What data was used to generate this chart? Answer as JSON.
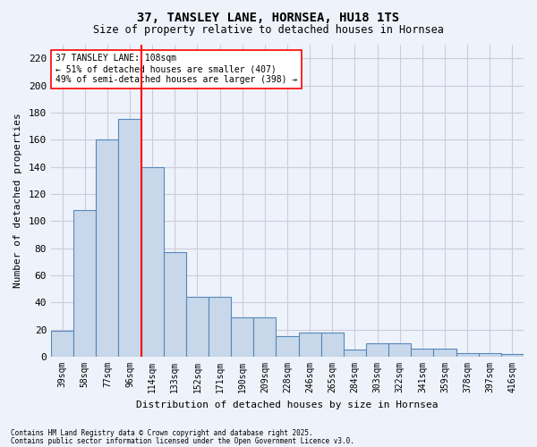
{
  "title1": "37, TANSLEY LANE, HORNSEA, HU18 1TS",
  "title2": "Size of property relative to detached houses in Hornsea",
  "xlabel": "Distribution of detached houses by size in Hornsea",
  "ylabel": "Number of detached properties",
  "categories": [
    "39sqm",
    "58sqm",
    "77sqm",
    "96sqm",
    "114sqm",
    "133sqm",
    "152sqm",
    "171sqm",
    "190sqm",
    "209sqm",
    "228sqm",
    "246sqm",
    "265sqm",
    "284sqm",
    "303sqm",
    "322sqm",
    "341sqm",
    "359sqm",
    "378sqm",
    "397sqm",
    "416sqm"
  ],
  "values": [
    19,
    108,
    160,
    175,
    140,
    77,
    44,
    44,
    29,
    29,
    15,
    18,
    18,
    5,
    10,
    10,
    6,
    6,
    3,
    3,
    2
  ],
  "bar_color": "#c8d8ea",
  "bar_edge_color": "#5588bb",
  "bar_edge_width": 0.8,
  "vline_x_index": 3,
  "vline_color": "red",
  "annotation_text": "37 TANSLEY LANE: 108sqm\n← 51% of detached houses are smaller (407)\n49% of semi-detached houses are larger (398) →",
  "annotation_box_color": "white",
  "annotation_box_edge": "red",
  "ylim": [
    0,
    230
  ],
  "yticks": [
    0,
    20,
    40,
    60,
    80,
    100,
    120,
    140,
    160,
    180,
    200,
    220
  ],
  "grid_color": "#ccccdd",
  "bg_color": "#eef2fa",
  "footer1": "Contains HM Land Registry data © Crown copyright and database right 2025.",
  "footer2": "Contains public sector information licensed under the Open Government Licence v3.0."
}
